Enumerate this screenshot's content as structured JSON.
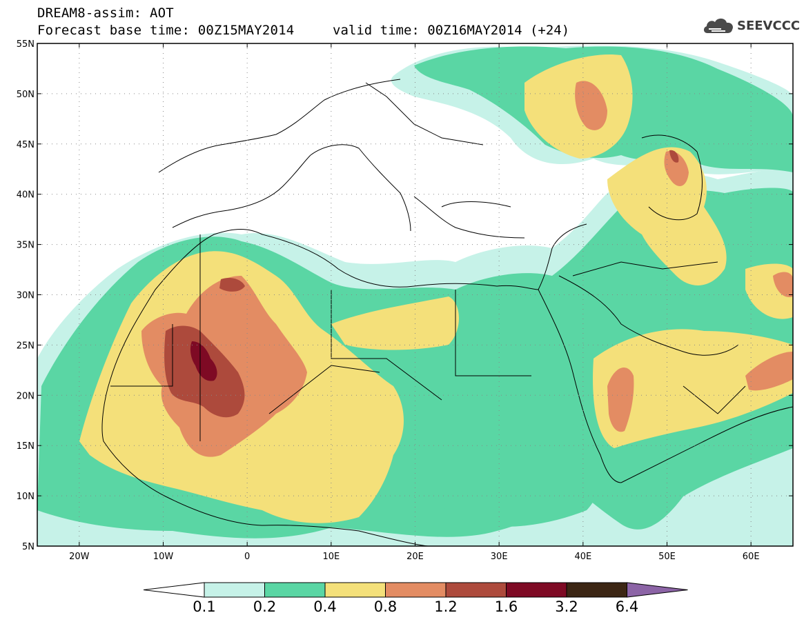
{
  "title": {
    "line1": "DREAM8-assim: AOT",
    "line2": "Forecast base time: 00Z15MAY2014",
    "valid": "valid time: 00Z16MAY2014 (+24)"
  },
  "logo": {
    "text": "SEEVCCC",
    "icon": "cloud-icon"
  },
  "axes": {
    "lat_labels": [
      "55N",
      "50N",
      "45N",
      "40N",
      "35N",
      "30N",
      "25N",
      "20N",
      "15N",
      "10N",
      "5N"
    ],
    "lon_labels": [
      "20W",
      "10W",
      "0",
      "10E",
      "20E",
      "30E",
      "40E",
      "50E",
      "60E"
    ]
  },
  "colorbar": {
    "labels": [
      "0.1",
      "0.2",
      "0.4",
      "0.8",
      "1.2",
      "1.6",
      "3.2",
      "6.4"
    ],
    "colors": [
      "#c6f2e8",
      "#5ad6a4",
      "#f4e07a",
      "#e38c63",
      "#ad4a3c",
      "#7e0a24",
      "#3c2614",
      "#8c64a6"
    ],
    "under_color": "#ffffff"
  },
  "map_colors": {
    "very_light": "#c6f2e8",
    "light": "#5ad6a4",
    "yellow": "#f4e07a",
    "orange": "#e38c63",
    "brown": "#ad4a3c",
    "dark": "#7e0a24"
  }
}
